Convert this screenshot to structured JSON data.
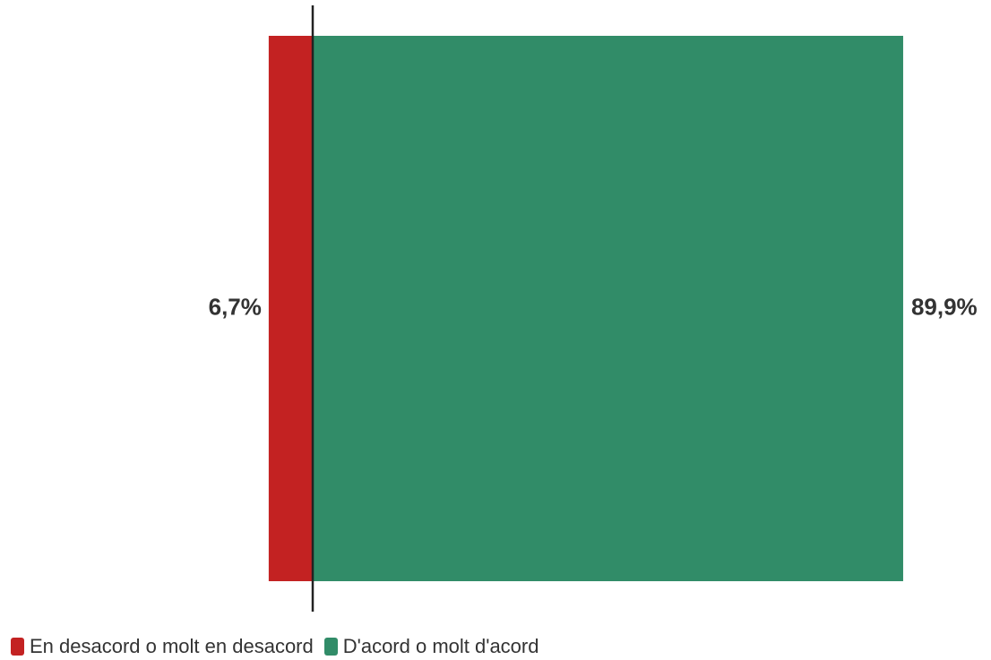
{
  "chart_data": {
    "type": "bar",
    "orientation": "horizontal-stacked",
    "zero_line": true,
    "series": [
      {
        "name": "En desacord o molt en desacord",
        "value": -6.7,
        "label": "6,7%",
        "color": "#c32222"
      },
      {
        "name": "D'acord o molt d'acord",
        "value": 89.9,
        "label": "89,9%",
        "color": "#318c68"
      }
    ],
    "legend": {
      "position": "bottom-left",
      "items": [
        {
          "label": "En desacord o molt en desacord",
          "color": "#c32222"
        },
        {
          "label": "D'acord o molt d'acord",
          "color": "#318c68"
        }
      ]
    }
  }
}
